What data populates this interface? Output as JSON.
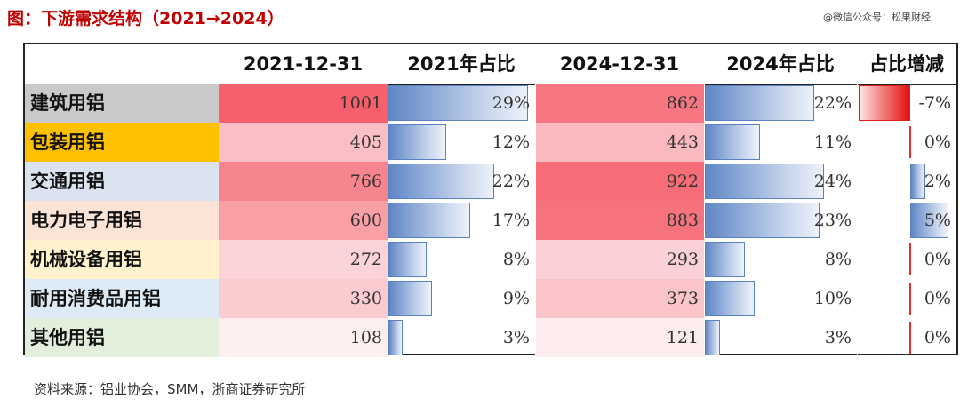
{
  "title": "图：下游需求结构（2021→2024）",
  "watermark": "@微信公众号：松果财经",
  "source": "资料来源：铝业协会，SMM，浙商证券研究所",
  "colors": {
    "title": "#c00000",
    "bar_blue": "#5f86c6",
    "decline_red": "#e01010",
    "category_backgrounds": [
      "#c9c9c9",
      "#ffc000",
      "#dbe3f1",
      "#fbe4d6",
      "#fff2cc",
      "#ddebf7",
      "#e2efda"
    ]
  },
  "table": {
    "headers": [
      "",
      "2021-12-31",
      "2021年占比",
      "2024-12-31",
      "2024年占比",
      "占比增减"
    ],
    "rows": [
      {
        "category": "建筑用铝",
        "v2021": "1001",
        "share2021": "29%",
        "v2024": "862",
        "share2024": "22%",
        "change": "-7%"
      },
      {
        "category": "包装用铝",
        "v2021": "405",
        "share2021": "12%",
        "v2024": "443",
        "share2024": "11%",
        "change": "0%"
      },
      {
        "category": "交通用铝",
        "v2021": "766",
        "share2021": "22%",
        "v2024": "922",
        "share2024": "24%",
        "change": "2%"
      },
      {
        "category": "电力电子用铝",
        "v2021": "600",
        "share2021": "17%",
        "v2024": "883",
        "share2024": "23%",
        "change": "5%"
      },
      {
        "category": "机械设备用铝",
        "v2021": "272",
        "share2021": "8%",
        "v2024": "293",
        "share2024": "8%",
        "change": "0%"
      },
      {
        "category": "耐用消费品用铝",
        "v2021": "330",
        "share2021": "9%",
        "v2024": "373",
        "share2024": "10%",
        "change": "0%"
      },
      {
        "category": "其他用铝",
        "v2021": "108",
        "share2021": "3%",
        "v2024": "121",
        "share2024": "3%",
        "change": "0%"
      }
    ]
  }
}
